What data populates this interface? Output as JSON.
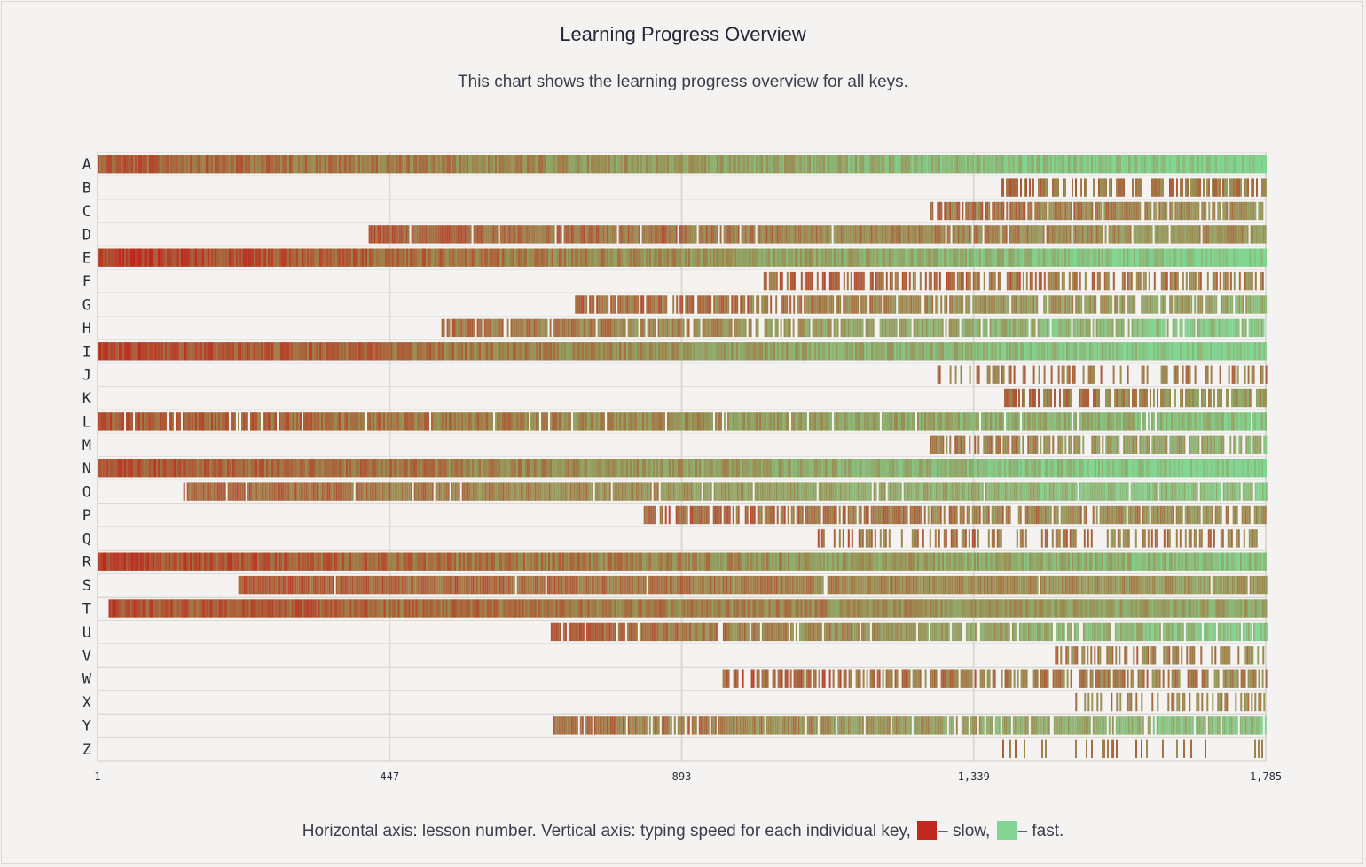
{
  "title": "Learning Progress Overview",
  "subtitle": "This chart shows the learning progress overview for all keys.",
  "caption": {
    "prefix": "Horizontal axis: lesson number. Vertical axis: typing speed for each individual key,",
    "slow_label": "– slow,",
    "fast_label": "– fast.",
    "slow_color": "#c0281f",
    "fast_color": "#82d694"
  },
  "chart_data": {
    "type": "heatmap",
    "x_range": [
      1,
      1785
    ],
    "x_ticks": [
      "1",
      "447",
      "893",
      "1,339",
      "1,785"
    ],
    "x_tick_values": [
      1,
      447,
      893,
      1339,
      1785
    ],
    "grid": true,
    "color_scale": {
      "slow": "#c0281f",
      "mid": "#9c8a50",
      "fast": "#82d694"
    },
    "keys": [
      {
        "key": "A",
        "start": 1,
        "density": 1.0,
        "speed_start": 0.25,
        "speed_end": 1.0
      },
      {
        "key": "B",
        "start": 1380,
        "density": 0.65,
        "speed_start": 0.35,
        "speed_end": 0.45
      },
      {
        "key": "C",
        "start": 1272,
        "density": 0.85,
        "speed_start": 0.35,
        "speed_end": 0.55
      },
      {
        "key": "D",
        "start": 415,
        "density": 0.95,
        "speed_start": 0.3,
        "speed_end": 0.55
      },
      {
        "key": "E",
        "start": 1,
        "density": 1.0,
        "speed_start": 0.1,
        "speed_end": 1.0
      },
      {
        "key": "F",
        "start": 1018,
        "density": 0.6,
        "speed_start": 0.3,
        "speed_end": 0.45
      },
      {
        "key": "G",
        "start": 730,
        "density": 0.85,
        "speed_start": 0.3,
        "speed_end": 0.7
      },
      {
        "key": "H",
        "start": 526,
        "density": 0.85,
        "speed_start": 0.35,
        "speed_end": 0.9
      },
      {
        "key": "I",
        "start": 1,
        "density": 1.0,
        "speed_start": 0.15,
        "speed_end": 1.0
      },
      {
        "key": "J",
        "start": 1267,
        "density": 0.35,
        "speed_start": 0.35,
        "speed_end": 0.45
      },
      {
        "key": "K",
        "start": 1380,
        "density": 0.7,
        "speed_start": 0.35,
        "speed_end": 0.6
      },
      {
        "key": "L",
        "start": 1,
        "density": 0.95,
        "speed_start": 0.25,
        "speed_end": 0.85
      },
      {
        "key": "M",
        "start": 1272,
        "density": 0.75,
        "speed_start": 0.4,
        "speed_end": 0.75
      },
      {
        "key": "N",
        "start": 1,
        "density": 1.0,
        "speed_start": 0.2,
        "speed_end": 1.0
      },
      {
        "key": "O",
        "start": 132,
        "density": 0.95,
        "speed_start": 0.3,
        "speed_end": 0.9
      },
      {
        "key": "P",
        "start": 835,
        "density": 0.8,
        "speed_start": 0.3,
        "speed_end": 0.55
      },
      {
        "key": "Q",
        "start": 1098,
        "density": 0.45,
        "speed_start": 0.35,
        "speed_end": 0.45
      },
      {
        "key": "R",
        "start": 1,
        "density": 1.0,
        "speed_start": 0.15,
        "speed_end": 0.85
      },
      {
        "key": "S",
        "start": 216,
        "density": 0.98,
        "speed_start": 0.25,
        "speed_end": 0.6
      },
      {
        "key": "T",
        "start": 18,
        "density": 1.0,
        "speed_start": 0.2,
        "speed_end": 0.7
      },
      {
        "key": "U",
        "start": 693,
        "density": 0.9,
        "speed_start": 0.3,
        "speed_end": 0.9
      },
      {
        "key": "V",
        "start": 1463,
        "density": 0.55,
        "speed_start": 0.4,
        "speed_end": 0.5
      },
      {
        "key": "W",
        "start": 950,
        "density": 0.7,
        "speed_start": 0.3,
        "speed_end": 0.5
      },
      {
        "key": "X",
        "start": 1486,
        "density": 0.45,
        "speed_start": 0.4,
        "speed_end": 0.5
      },
      {
        "key": "Y",
        "start": 697,
        "density": 0.9,
        "speed_start": 0.35,
        "speed_end": 0.85
      },
      {
        "key": "Z",
        "start": 1380,
        "density": 0.15,
        "speed_start": 0.35,
        "speed_end": 0.4
      }
    ]
  }
}
